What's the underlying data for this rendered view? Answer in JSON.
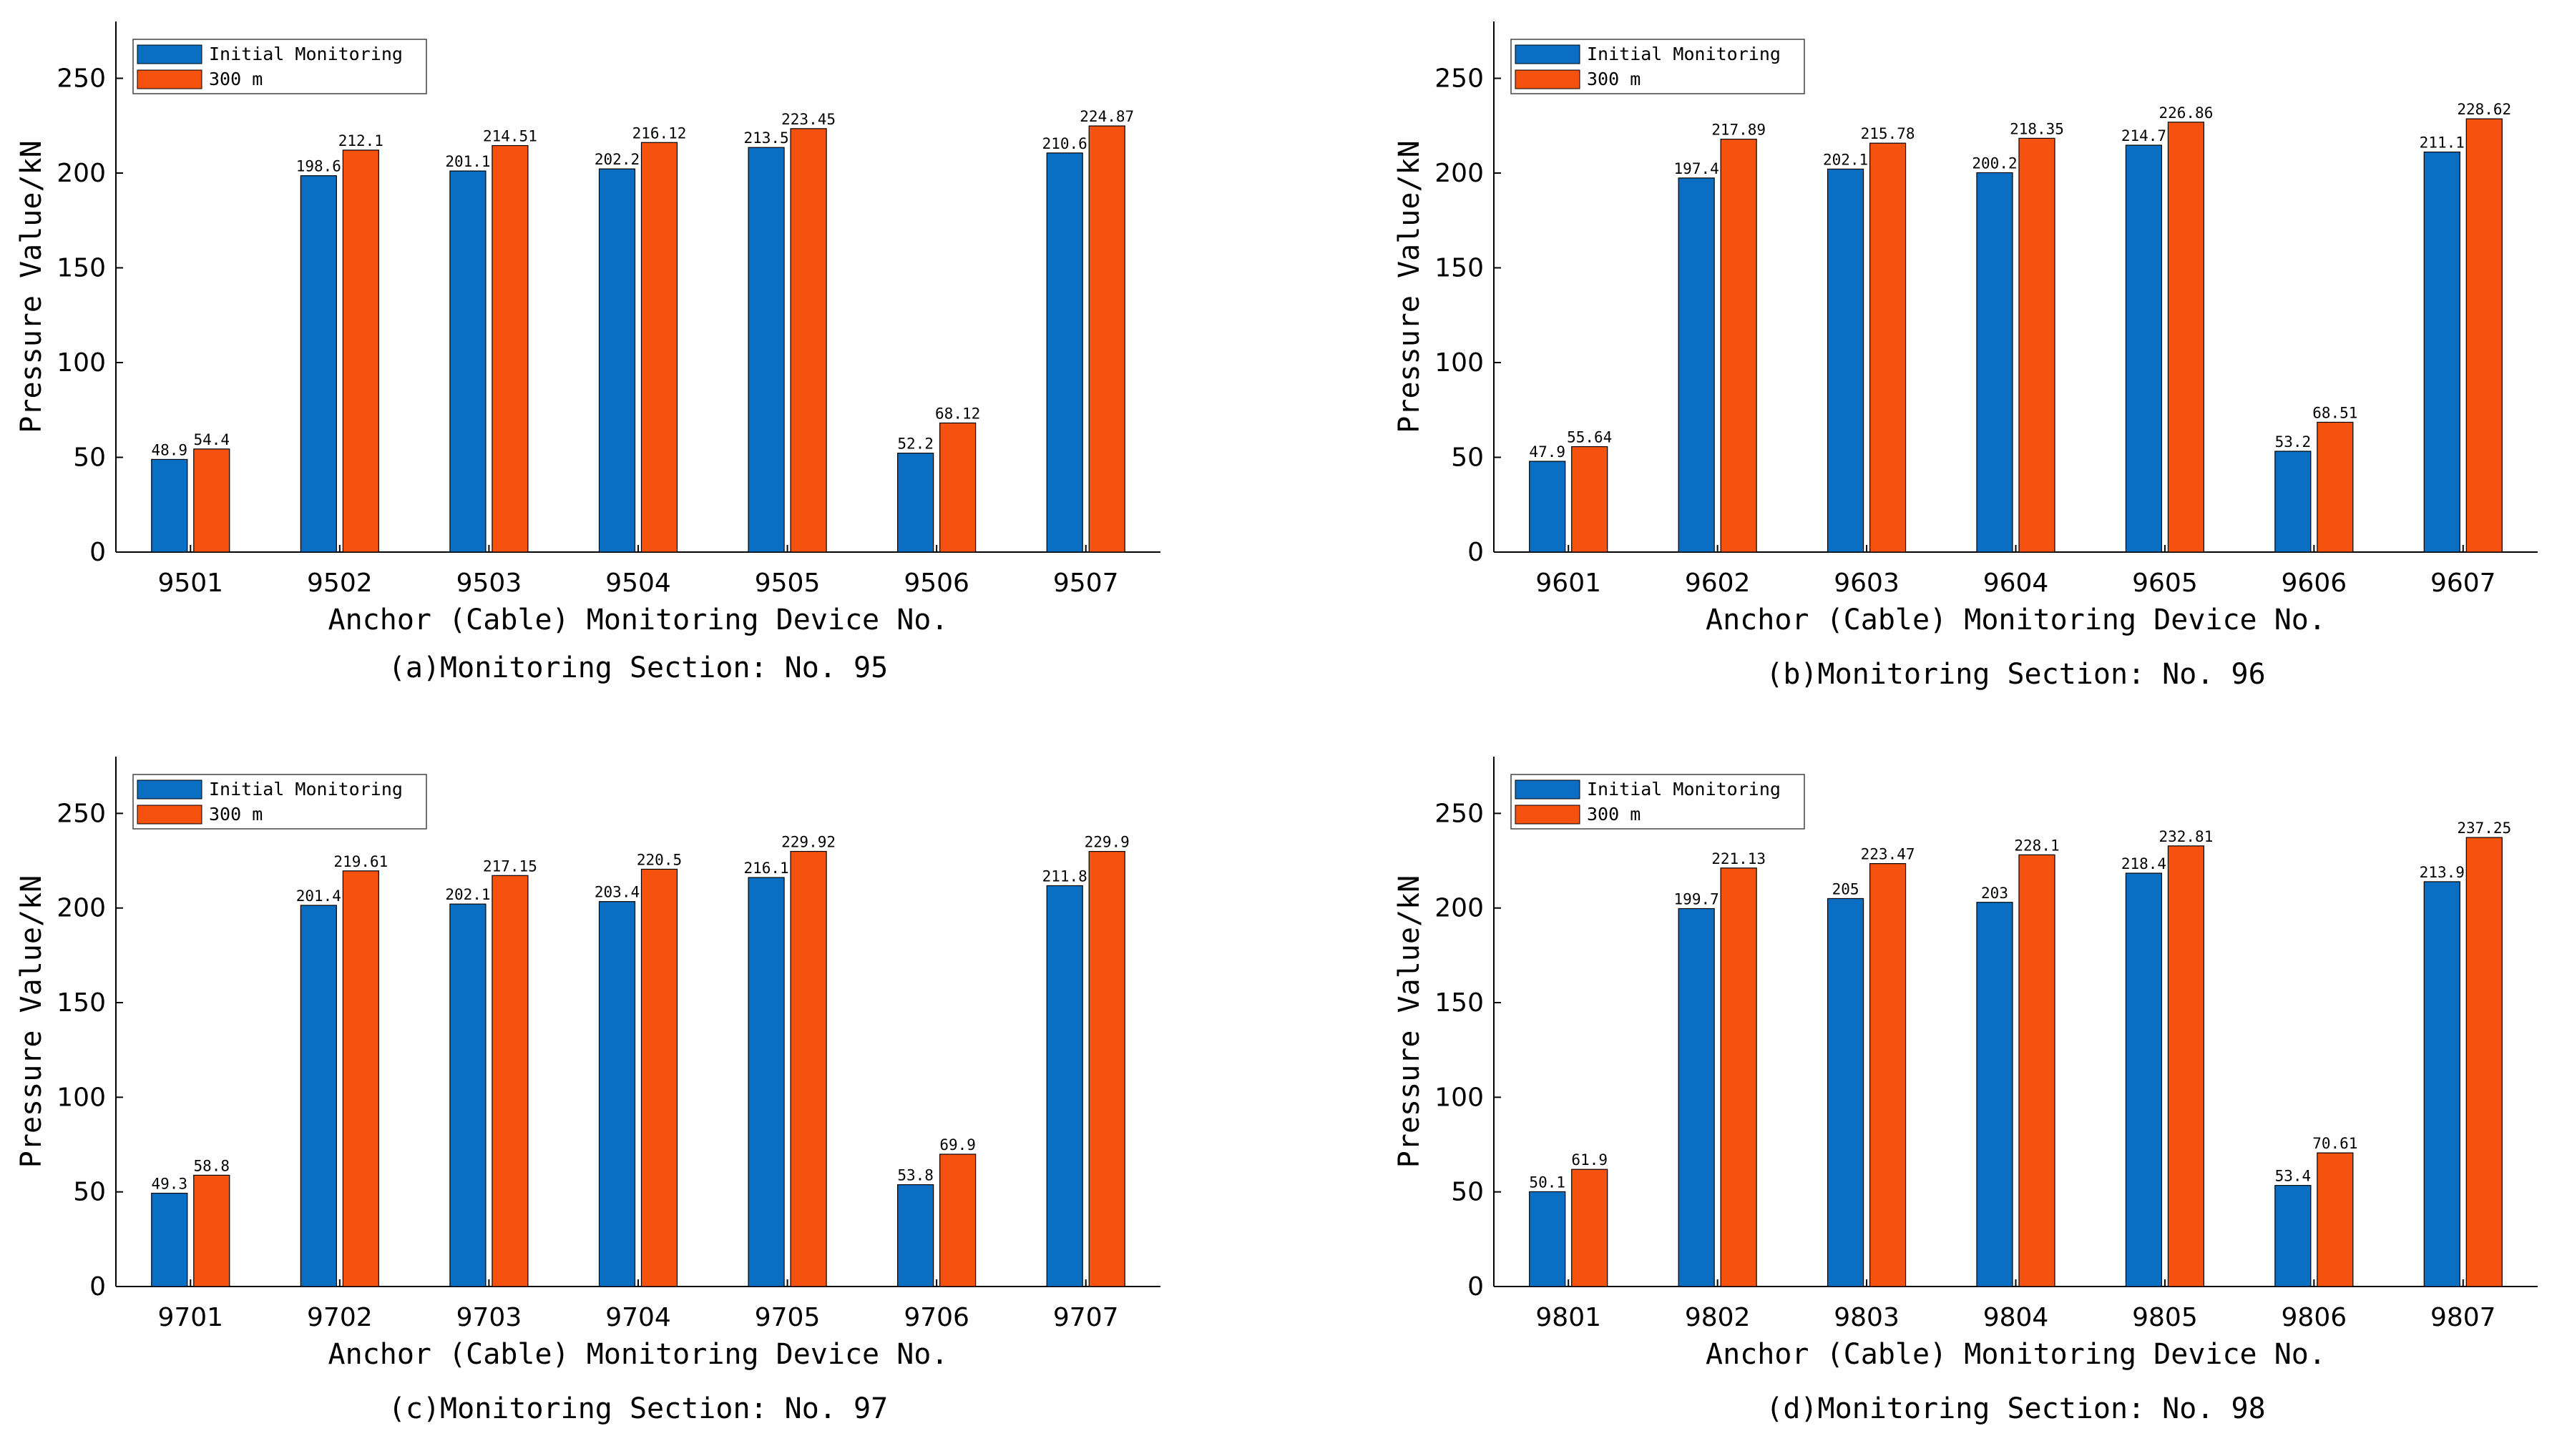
{
  "figure": {
    "series_colors": [
      "#0a6fc2",
      "#f5520f"
    ],
    "frame_color": "#000000"
  },
  "chart_data": [
    {
      "id": "a",
      "type": "bar",
      "title": "(a)Monitoring Section: No. 95",
      "xlabel": "Anchor (Cable) Monitoring Device No.",
      "ylabel": "Pressure Value/kN",
      "ylim": [
        0,
        280
      ],
      "yticks": [
        0,
        50,
        100,
        150,
        200,
        250
      ],
      "legend_position": "top-left",
      "categories": [
        "9501",
        "9502",
        "9503",
        "9504",
        "9505",
        "9506",
        "9507"
      ],
      "series": [
        {
          "name": "Initial Monitoring",
          "values": [
            48.9,
            198.6,
            201.1,
            202.2,
            213.5,
            52.2,
            210.6
          ],
          "labels": [
            "48.9",
            "198.6",
            "201.1",
            "202.2",
            "213.5",
            "52.2",
            "210.6"
          ]
        },
        {
          "name": "300 m",
          "values": [
            54.4,
            212.1,
            214.51,
            216.12,
            223.45,
            68.12,
            224.87
          ],
          "labels": [
            "54.4",
            "212.1",
            "214.51",
            "216.12",
            "223.45",
            "68.12",
            "224.87"
          ]
        }
      ]
    },
    {
      "id": "b",
      "type": "bar",
      "title": "(b)Monitoring Section: No. 96",
      "xlabel": "Anchor (Cable) Monitoring Device No.",
      "ylabel": "Pressure Value/kN",
      "ylim": [
        0,
        280
      ],
      "yticks": [
        0,
        50,
        100,
        150,
        200,
        250
      ],
      "legend_position": "top-left",
      "categories": [
        "9601",
        "9602",
        "9603",
        "9604",
        "9605",
        "9606",
        "9607"
      ],
      "series": [
        {
          "name": "Initial Monitoring",
          "values": [
            47.9,
            197.4,
            202.1,
            200.2,
            214.7,
            53.2,
            211.1
          ],
          "labels": [
            "47.9",
            "197.4",
            "202.1",
            "200.2",
            "214.7",
            "53.2",
            "211.1"
          ]
        },
        {
          "name": "300 m",
          "values": [
            55.64,
            217.89,
            215.78,
            218.35,
            226.86,
            68.51,
            228.62
          ],
          "labels": [
            "55.64",
            "217.89",
            "215.78",
            "218.35",
            "226.86",
            "68.51",
            "228.62"
          ]
        }
      ]
    },
    {
      "id": "c",
      "type": "bar",
      "title": "(c)Monitoring Section: No. 97",
      "xlabel": "Anchor (Cable) Monitoring Device No.",
      "ylabel": "Pressure Value/kN",
      "ylim": [
        0,
        280
      ],
      "yticks": [
        0,
        50,
        100,
        150,
        200,
        250
      ],
      "legend_position": "top-left",
      "categories": [
        "9701",
        "9702",
        "9703",
        "9704",
        "9705",
        "9706",
        "9707"
      ],
      "series": [
        {
          "name": "Initial Monitoring",
          "values": [
            49.3,
            201.4,
            202.1,
            203.4,
            216.1,
            53.8,
            211.8
          ],
          "labels": [
            "49.3",
            "201.4",
            "202.1",
            "203.4",
            "216.1",
            "53.8",
            "211.8"
          ]
        },
        {
          "name": "300 m",
          "values": [
            58.8,
            219.61,
            217.15,
            220.5,
            229.92,
            69.9,
            229.9
          ],
          "labels": [
            "58.8",
            "219.61",
            "217.15",
            "220.5",
            "229.92",
            "69.9",
            "229.9"
          ]
        }
      ]
    },
    {
      "id": "d",
      "type": "bar",
      "title": "(d)Monitoring Section: No. 98",
      "xlabel": "Anchor (Cable) Monitoring Device No.",
      "ylabel": "Pressure Value/kN",
      "ylim": [
        0,
        280
      ],
      "yticks": [
        0,
        50,
        100,
        150,
        200,
        250
      ],
      "legend_position": "top-left",
      "categories": [
        "9801",
        "9802",
        "9803",
        "9804",
        "9805",
        "9806",
        "9807"
      ],
      "series": [
        {
          "name": "Initial Monitoring",
          "values": [
            50.1,
            199.7,
            205,
            203,
            218.4,
            53.4,
            213.9
          ],
          "labels": [
            "50.1",
            "199.7",
            "205",
            "203",
            "218.4",
            "53.4",
            "213.9"
          ]
        },
        {
          "name": "300 m",
          "values": [
            61.9,
            221.13,
            223.47,
            228.1,
            232.81,
            70.61,
            237.25
          ],
          "labels": [
            "61.9",
            "221.13",
            "223.47",
            "228.1",
            "232.81",
            "70.61",
            "237.25"
          ]
        }
      ]
    }
  ]
}
